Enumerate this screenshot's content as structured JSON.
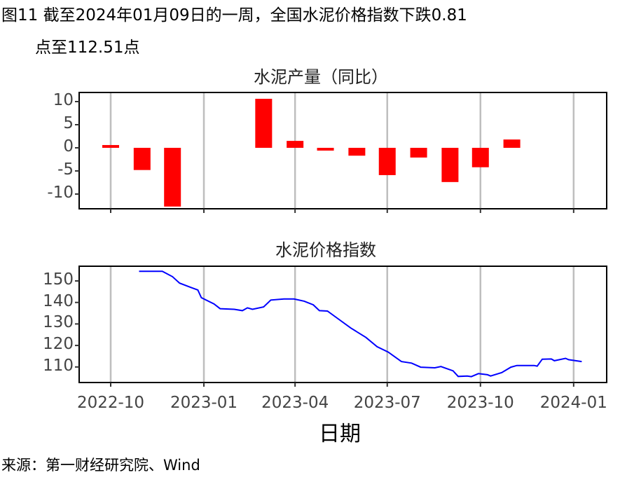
{
  "caption": {
    "line1": "图11  截至2024年01月09日的一周，全国水泥价格指数下跌0.81",
    "line2": "点至112.51点"
  },
  "source": "来源：第一财经研究院、Wind",
  "colors": {
    "bar": "#ff0000",
    "line": "#0000ff",
    "grid": "#bebebe"
  },
  "chart_data": [
    {
      "type": "bar",
      "title": "水泥产量（同比）",
      "categories": [
        "2022-10",
        "2022-11",
        "2022-12",
        "2023-03",
        "2023-04",
        "2023-05",
        "2023-06",
        "2023-07",
        "2023-08",
        "2023-09",
        "2023-10",
        "2023-11"
      ],
      "values": [
        0.6,
        -4.8,
        -12.7,
        10.6,
        1.5,
        -0.6,
        -1.7,
        -5.9,
        -2.1,
        -7.4,
        -4.2,
        1.8
      ],
      "ylim": [
        -13,
        11.5
      ],
      "yticks": [
        "10",
        "5",
        "0",
        "-5",
        "-10"
      ],
      "ytick_values": [
        10,
        5,
        0,
        -5,
        -10
      ],
      "grid": "vertical"
    },
    {
      "type": "line",
      "title": "水泥价格指数",
      "x_origin": "2022-10-01",
      "x_days": [
        28,
        51,
        61,
        68,
        79,
        86,
        89.5,
        102,
        108,
        122,
        130,
        135,
        140,
        151,
        158,
        171,
        181,
        191,
        200,
        206,
        214,
        223,
        237,
        252,
        263,
        274,
        287,
        297,
        306,
        320,
        326,
        338,
        343,
        352,
        356,
        363,
        372,
        375,
        386,
        395,
        401,
        418,
        421,
        426,
        435,
        438,
        449,
        452,
        465
      ],
      "values": [
        154.5,
        154.5,
        152,
        149,
        147,
        145.8,
        142.2,
        139.3,
        137.1,
        136.8,
        136.2,
        137.5,
        136.8,
        137.9,
        141.1,
        141.6,
        141.6,
        140.6,
        138.9,
        136.2,
        136,
        132.9,
        128.1,
        123.7,
        119.4,
        116.9,
        112.5,
        111.8,
        109.9,
        109.6,
        110.2,
        108.2,
        105.6,
        105.8,
        105.5,
        106.9,
        106.4,
        105.8,
        107.4,
        109.9,
        110.7,
        110.7,
        110.4,
        113.6,
        113.7,
        112.9,
        114,
        113.4,
        112.51
      ],
      "yticks": [
        "150",
        "140",
        "130",
        "120",
        "110"
      ],
      "ytick_values": [
        150,
        140,
        130,
        120,
        110
      ],
      "xlabel": "日期",
      "xticks": [
        "2022-10",
        "2023-01",
        "2023-04",
        "2023-07",
        "2023-10",
        "2024-01"
      ],
      "xtick_days": [
        0,
        92,
        182,
        273,
        365,
        457
      ]
    }
  ]
}
